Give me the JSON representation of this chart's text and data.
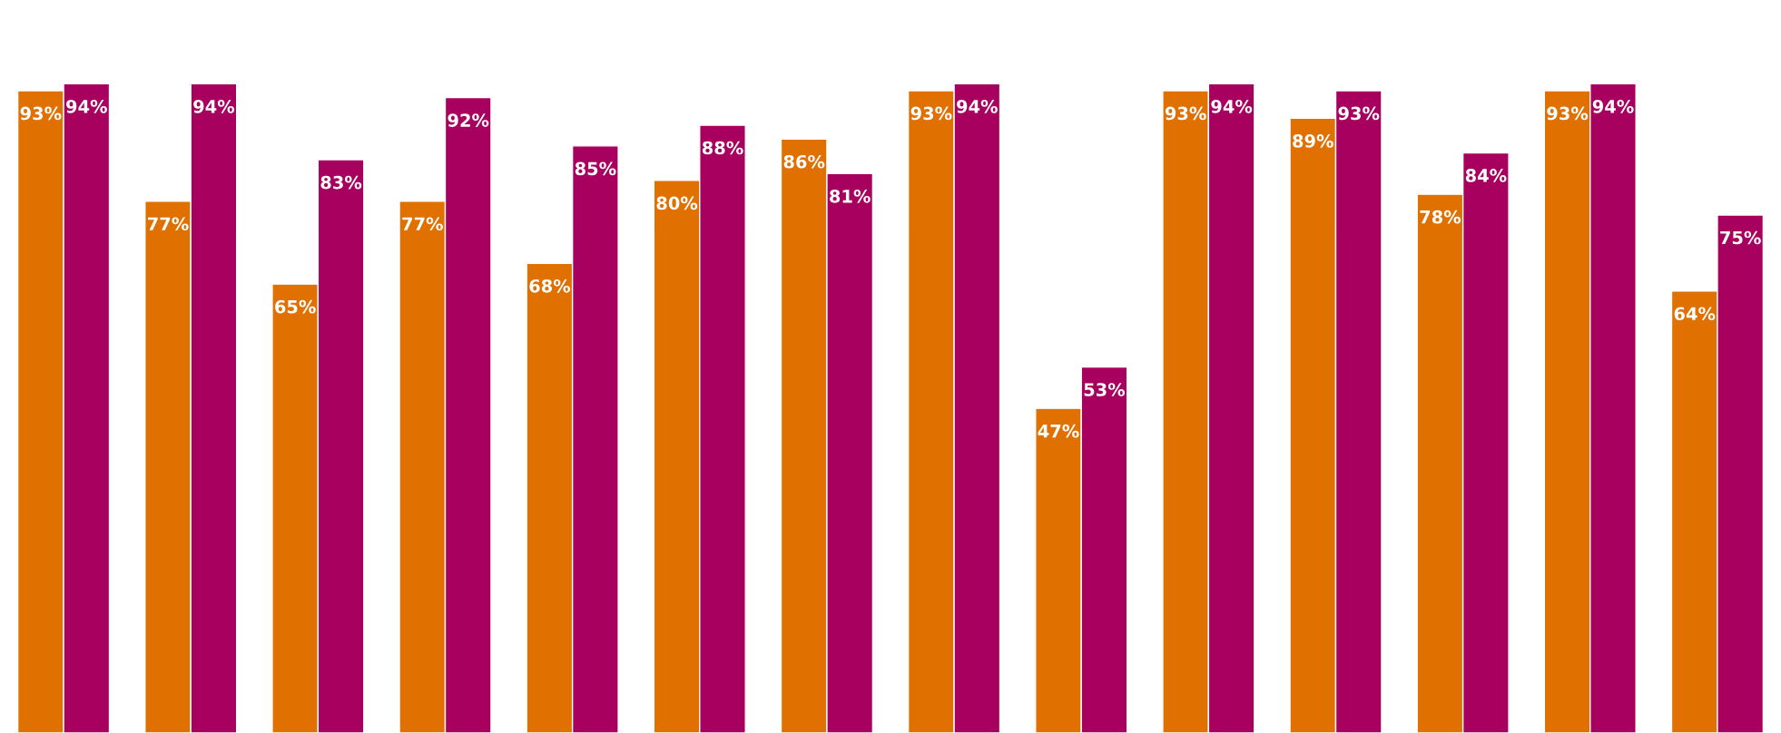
{
  "chart_data": {
    "type": "bar",
    "categories": [
      null,
      null,
      null,
      null,
      null,
      null,
      null,
      null,
      null,
      null,
      null,
      null,
      null,
      null
    ],
    "series": [
      {
        "color": "#e07000",
        "values": [
          93,
          77,
          65,
          77,
          68,
          80,
          86,
          93,
          47,
          93,
          89,
          78,
          93,
          64
        ],
        "value_labels": [
          "93%",
          "77%",
          "65%",
          "77%",
          "68%",
          "80%",
          "86%",
          "93%",
          "47%",
          "93%",
          "89%",
          "78%",
          "93%",
          "64%"
        ]
      },
      {
        "color": "#a8005f",
        "values": [
          94,
          94,
          83,
          92,
          85,
          88,
          81,
          94,
          53,
          94,
          93,
          84,
          94,
          75
        ],
        "value_labels": [
          "94%",
          "94%",
          "83%",
          "92%",
          "85%",
          "88%",
          "81%",
          "94%",
          "53%",
          "94%",
          "93%",
          "84%",
          "94%",
          "75%"
        ]
      }
    ]
  }
}
